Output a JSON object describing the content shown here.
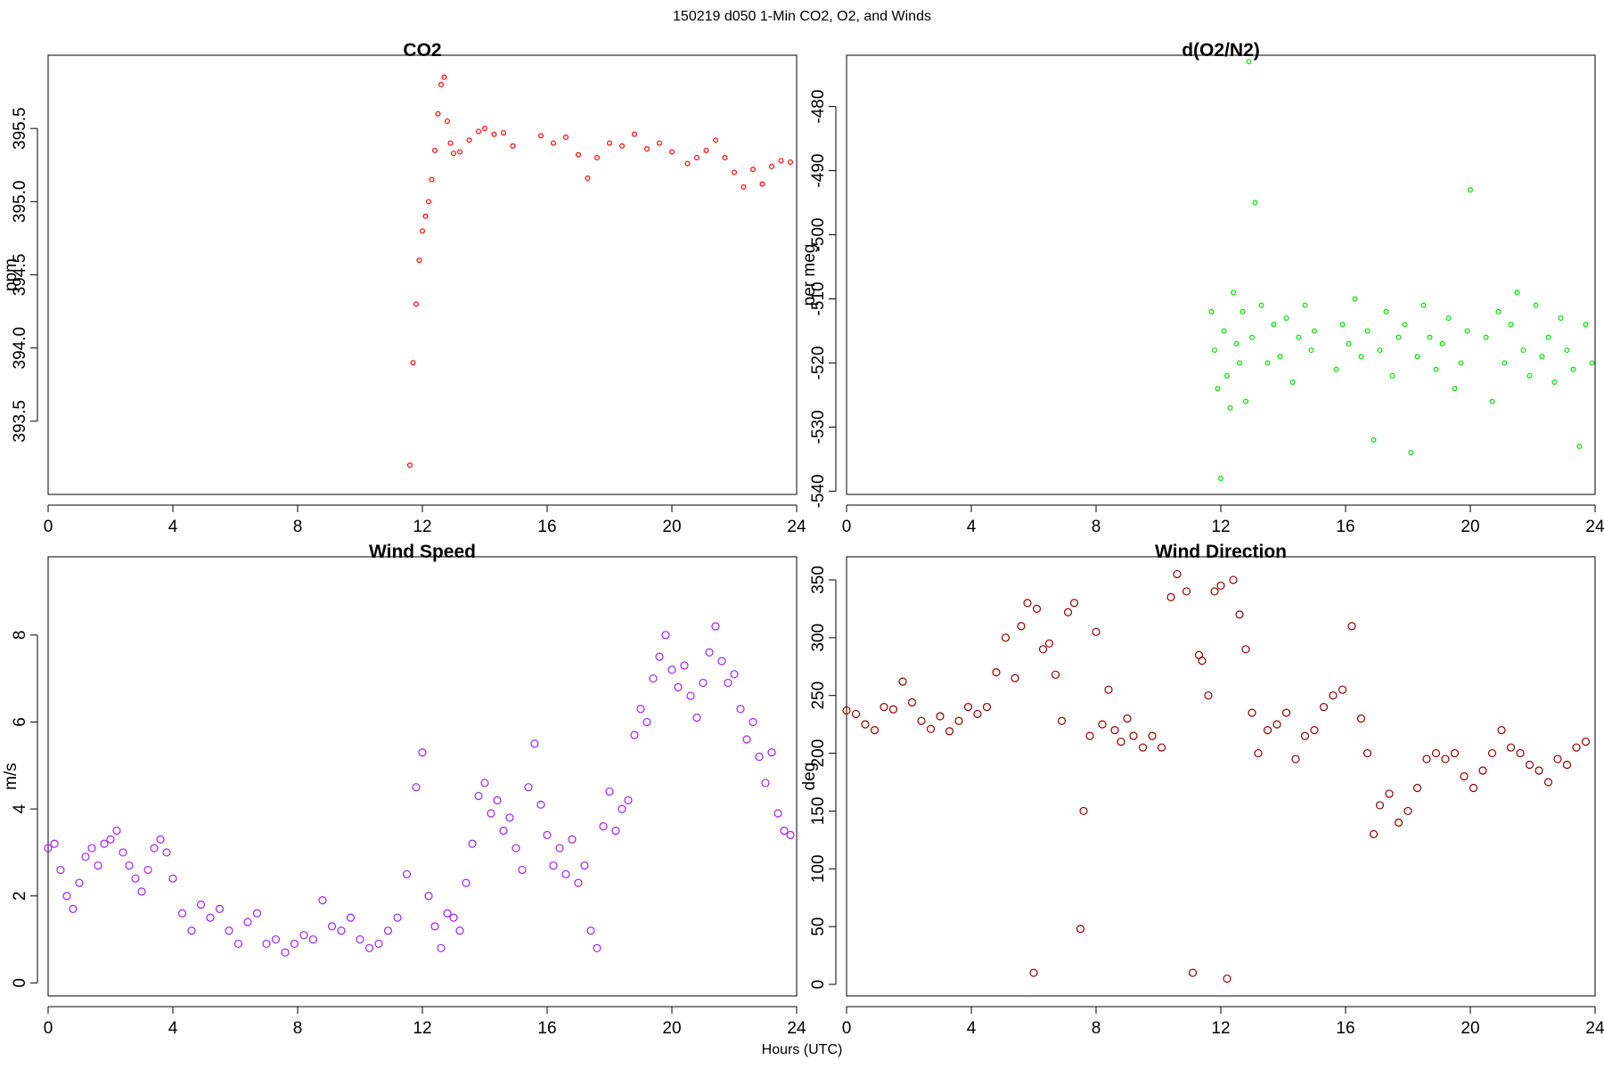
{
  "figure": {
    "title": "150219   d050   1-Min CO2, O2, and Winds",
    "xlabel": "Hours (UTC)"
  },
  "chart_data": [
    {
      "id": "co2",
      "type": "scatter",
      "title": "CO2",
      "xlabel": "",
      "ylabel": "ppm",
      "xlim": [
        0,
        24
      ],
      "ylim": [
        393.0,
        396.0
      ],
      "xticks": [
        0,
        4,
        8,
        12,
        16,
        20,
        24
      ],
      "yticks": [
        393.5,
        394.0,
        394.5,
        395.0,
        395.5
      ],
      "ytick_labels": [
        "393.5",
        "394.0",
        "394.5",
        "395.0",
        "395.5"
      ],
      "color": "#ff0000",
      "grid": false,
      "series": [
        {
          "x": [
            11.6,
            11.7,
            11.8,
            11.9,
            12.0,
            12.1,
            12.2,
            12.3,
            12.4,
            12.5,
            12.6,
            12.7,
            12.8,
            12.9,
            13.0,
            13.2,
            13.5,
            13.8,
            14.0,
            14.3,
            14.6,
            14.9,
            15.8,
            16.2,
            16.6,
            17.0,
            17.3,
            17.6,
            18.0,
            18.4,
            18.8,
            19.2,
            19.6,
            20.0,
            20.5,
            20.8,
            21.1,
            21.4,
            21.7,
            22.0,
            22.3,
            22.6,
            22.9,
            23.2,
            23.5,
            23.8
          ],
          "y": [
            393.2,
            393.9,
            394.3,
            394.6,
            394.8,
            394.9,
            395.0,
            395.15,
            395.35,
            395.6,
            395.8,
            395.85,
            395.55,
            395.4,
            395.33,
            395.34,
            395.42,
            395.48,
            395.5,
            395.46,
            395.47,
            395.38,
            395.45,
            395.4,
            395.44,
            395.32,
            395.16,
            395.3,
            395.4,
            395.38,
            395.46,
            395.36,
            395.4,
            395.34,
            395.26,
            395.3,
            395.35,
            395.42,
            395.3,
            395.2,
            395.1,
            395.22,
            395.12,
            395.24,
            395.28,
            395.27
          ]
        }
      ]
    },
    {
      "id": "o2",
      "type": "scatter",
      "title": "d(O2/N2)",
      "xlabel": "",
      "ylabel": "per meg",
      "xlim": [
        0,
        24
      ],
      "ylim": [
        -540.5,
        -472
      ],
      "xticks": [
        0,
        4,
        8,
        12,
        16,
        20,
        24
      ],
      "yticks": [
        -540,
        -530,
        -520,
        -510,
        -500,
        -490,
        -480
      ],
      "ytick_labels": [
        "-540",
        "-530",
        "-520",
        "-510",
        "-500",
        "-490",
        "-480"
      ],
      "color": "#00dd00",
      "grid": false,
      "series": [
        {
          "x": [
            11.7,
            11.8,
            11.9,
            12.0,
            12.1,
            12.2,
            12.3,
            12.4,
            12.5,
            12.6,
            12.7,
            12.8,
            12.9,
            13.0,
            13.1,
            13.3,
            13.5,
            13.7,
            13.9,
            14.1,
            14.3,
            14.5,
            14.7,
            14.9,
            15.0,
            15.7,
            15.9,
            16.1,
            16.3,
            16.5,
            16.7,
            16.9,
            17.1,
            17.3,
            17.5,
            17.7,
            17.9,
            18.1,
            18.3,
            18.5,
            18.7,
            18.9,
            19.1,
            19.3,
            19.5,
            19.7,
            19.9,
            20.0,
            20.5,
            20.7,
            20.9,
            21.1,
            21.3,
            21.5,
            21.7,
            21.9,
            22.1,
            22.3,
            22.5,
            22.7,
            22.9,
            23.1,
            23.3,
            23.5,
            23.7,
            23.9
          ],
          "y": [
            -512,
            -518,
            -524,
            -538,
            -515,
            -522,
            -527,
            -509,
            -517,
            -520,
            -512,
            -526,
            -473,
            -516,
            -495,
            -511,
            -520,
            -514,
            -519,
            -513,
            -523,
            -516,
            -511,
            -518,
            -515,
            -521,
            -514,
            -517,
            -510,
            -519,
            -515,
            -532,
            -518,
            -512,
            -522,
            -516,
            -514,
            -534,
            -519,
            -511,
            -516,
            -521,
            -517,
            -513,
            -524,
            -520,
            -515,
            -493,
            -516,
            -526,
            -512,
            -520,
            -514,
            -509,
            -518,
            -522,
            -511,
            -519,
            -516,
            -523,
            -513,
            -518,
            -521,
            -533,
            -514,
            -520
          ]
        }
      ]
    },
    {
      "id": "wind_speed",
      "type": "scatter",
      "title": "Wind Speed",
      "xlabel": "",
      "ylabel": "m/s",
      "xlim": [
        0,
        24
      ],
      "ylim": [
        -0.3,
        9.8
      ],
      "xticks": [
        0,
        4,
        8,
        12,
        16,
        20,
        24
      ],
      "yticks": [
        0,
        2,
        4,
        6,
        8
      ],
      "ytick_labels": [
        "0",
        "2",
        "4",
        "6",
        "8"
      ],
      "color": "#a020f0",
      "grid": false,
      "series": [
        {
          "x": [
            0.0,
            0.2,
            0.4,
            0.6,
            0.8,
            1.0,
            1.2,
            1.4,
            1.6,
            1.8,
            2.0,
            2.2,
            2.4,
            2.6,
            2.8,
            3.0,
            3.2,
            3.4,
            3.6,
            3.8,
            4.0,
            4.3,
            4.6,
            4.9,
            5.2,
            5.5,
            5.8,
            6.1,
            6.4,
            6.7,
            7.0,
            7.3,
            7.6,
            7.9,
            8.2,
            8.5,
            8.8,
            9.1,
            9.4,
            9.7,
            10.0,
            10.3,
            10.6,
            10.9,
            11.2,
            11.5,
            11.8,
            12.0,
            12.2,
            12.4,
            12.6,
            12.8,
            13.0,
            13.2,
            13.4,
            13.6,
            13.8,
            14.0,
            14.2,
            14.4,
            14.6,
            14.8,
            15.0,
            15.2,
            15.4,
            15.6,
            15.8,
            16.0,
            16.2,
            16.4,
            16.6,
            16.8,
            17.0,
            17.2,
            17.4,
            17.6,
            17.8,
            18.0,
            18.2,
            18.4,
            18.6,
            18.8,
            19.0,
            19.2,
            19.4,
            19.6,
            19.8,
            20.0,
            20.2,
            20.4,
            20.6,
            20.8,
            21.0,
            21.2,
            21.4,
            21.6,
            21.8,
            22.0,
            22.2,
            22.4,
            22.6,
            22.8,
            23.0,
            23.2,
            23.4,
            23.6,
            23.8
          ],
          "y": [
            3.1,
            3.2,
            2.6,
            2.0,
            1.7,
            2.3,
            2.9,
            3.1,
            2.7,
            3.2,
            3.3,
            3.5,
            3.0,
            2.7,
            2.4,
            2.1,
            2.6,
            3.1,
            3.3,
            3.0,
            2.4,
            1.6,
            1.2,
            1.8,
            1.5,
            1.7,
            1.2,
            0.9,
            1.4,
            1.6,
            0.9,
            1.0,
            0.7,
            0.9,
            1.1,
            1.0,
            1.9,
            1.3,
            1.2,
            1.5,
            1.0,
            0.8,
            0.9,
            1.2,
            1.5,
            2.5,
            4.5,
            5.3,
            2.0,
            1.3,
            0.8,
            1.6,
            1.5,
            1.2,
            2.3,
            3.2,
            4.3,
            4.6,
            3.9,
            4.2,
            3.5,
            3.8,
            3.1,
            2.6,
            4.5,
            5.5,
            4.1,
            3.4,
            2.7,
            3.1,
            2.5,
            3.3,
            2.3,
            2.7,
            1.2,
            0.8,
            3.6,
            4.4,
            3.5,
            4.0,
            4.2,
            5.7,
            6.3,
            6.0,
            7.0,
            7.5,
            8.0,
            7.2,
            6.8,
            7.3,
            6.6,
            6.1,
            6.9,
            7.6,
            8.2,
            7.4,
            6.9,
            7.1,
            6.3,
            5.6,
            6.0,
            5.2,
            4.6,
            5.3,
            3.9,
            3.5,
            3.4
          ]
        }
      ]
    },
    {
      "id": "wind_direction",
      "type": "scatter",
      "title": "Wind Direction",
      "xlabel": "",
      "ylabel": "deg",
      "xlim": [
        0,
        24
      ],
      "ylim": [
        -10,
        370
      ],
      "xticks": [
        0,
        4,
        8,
        12,
        16,
        20,
        24
      ],
      "yticks": [
        0,
        50,
        100,
        150,
        200,
        250,
        300,
        350
      ],
      "ytick_labels": [
        "0",
        "50",
        "100",
        "150",
        "200",
        "250",
        "300",
        "350"
      ],
      "color": "#8b0000",
      "grid": false,
      "series": [
        {
          "x": [
            0.0,
            0.3,
            0.6,
            0.9,
            1.2,
            1.5,
            1.8,
            2.1,
            2.4,
            2.7,
            3.0,
            3.3,
            3.6,
            3.9,
            4.2,
            4.5,
            4.8,
            5.1,
            5.4,
            5.6,
            5.8,
            6.0,
            6.1,
            6.3,
            6.5,
            6.7,
            6.9,
            7.1,
            7.3,
            7.5,
            7.6,
            7.8,
            8.0,
            8.2,
            8.4,
            8.6,
            8.8,
            9.0,
            9.2,
            9.5,
            9.8,
            10.1,
            10.4,
            10.6,
            10.9,
            11.1,
            11.3,
            11.4,
            11.6,
            11.8,
            12.0,
            12.2,
            12.4,
            12.6,
            12.8,
            13.0,
            13.2,
            13.5,
            13.8,
            14.1,
            14.4,
            14.7,
            15.0,
            15.3,
            15.6,
            15.9,
            16.2,
            16.5,
            16.7,
            16.9,
            17.1,
            17.4,
            17.7,
            18.0,
            18.3,
            18.6,
            18.9,
            19.2,
            19.5,
            19.8,
            20.1,
            20.4,
            20.7,
            21.0,
            21.3,
            21.6,
            21.9,
            22.2,
            22.5,
            22.8,
            23.1,
            23.4,
            23.7
          ],
          "y": [
            237,
            234,
            225,
            220,
            240,
            238,
            262,
            244,
            228,
            221,
            232,
            219,
            228,
            240,
            234,
            240,
            270,
            300,
            265,
            310,
            330,
            10,
            325,
            290,
            295,
            268,
            228,
            322,
            330,
            48,
            150,
            215,
            305,
            225,
            255,
            220,
            210,
            230,
            215,
            205,
            215,
            205,
            335,
            355,
            340,
            10,
            285,
            280,
            250,
            340,
            345,
            5,
            350,
            320,
            290,
            235,
            200,
            220,
            225,
            235,
            195,
            215,
            220,
            240,
            250,
            255,
            310,
            230,
            200,
            130,
            155,
            165,
            140,
            150,
            170,
            195,
            200,
            195,
            200,
            180,
            170,
            185,
            200,
            220,
            205,
            200,
            190,
            185,
            175,
            195,
            190,
            205,
            210
          ]
        }
      ]
    }
  ]
}
